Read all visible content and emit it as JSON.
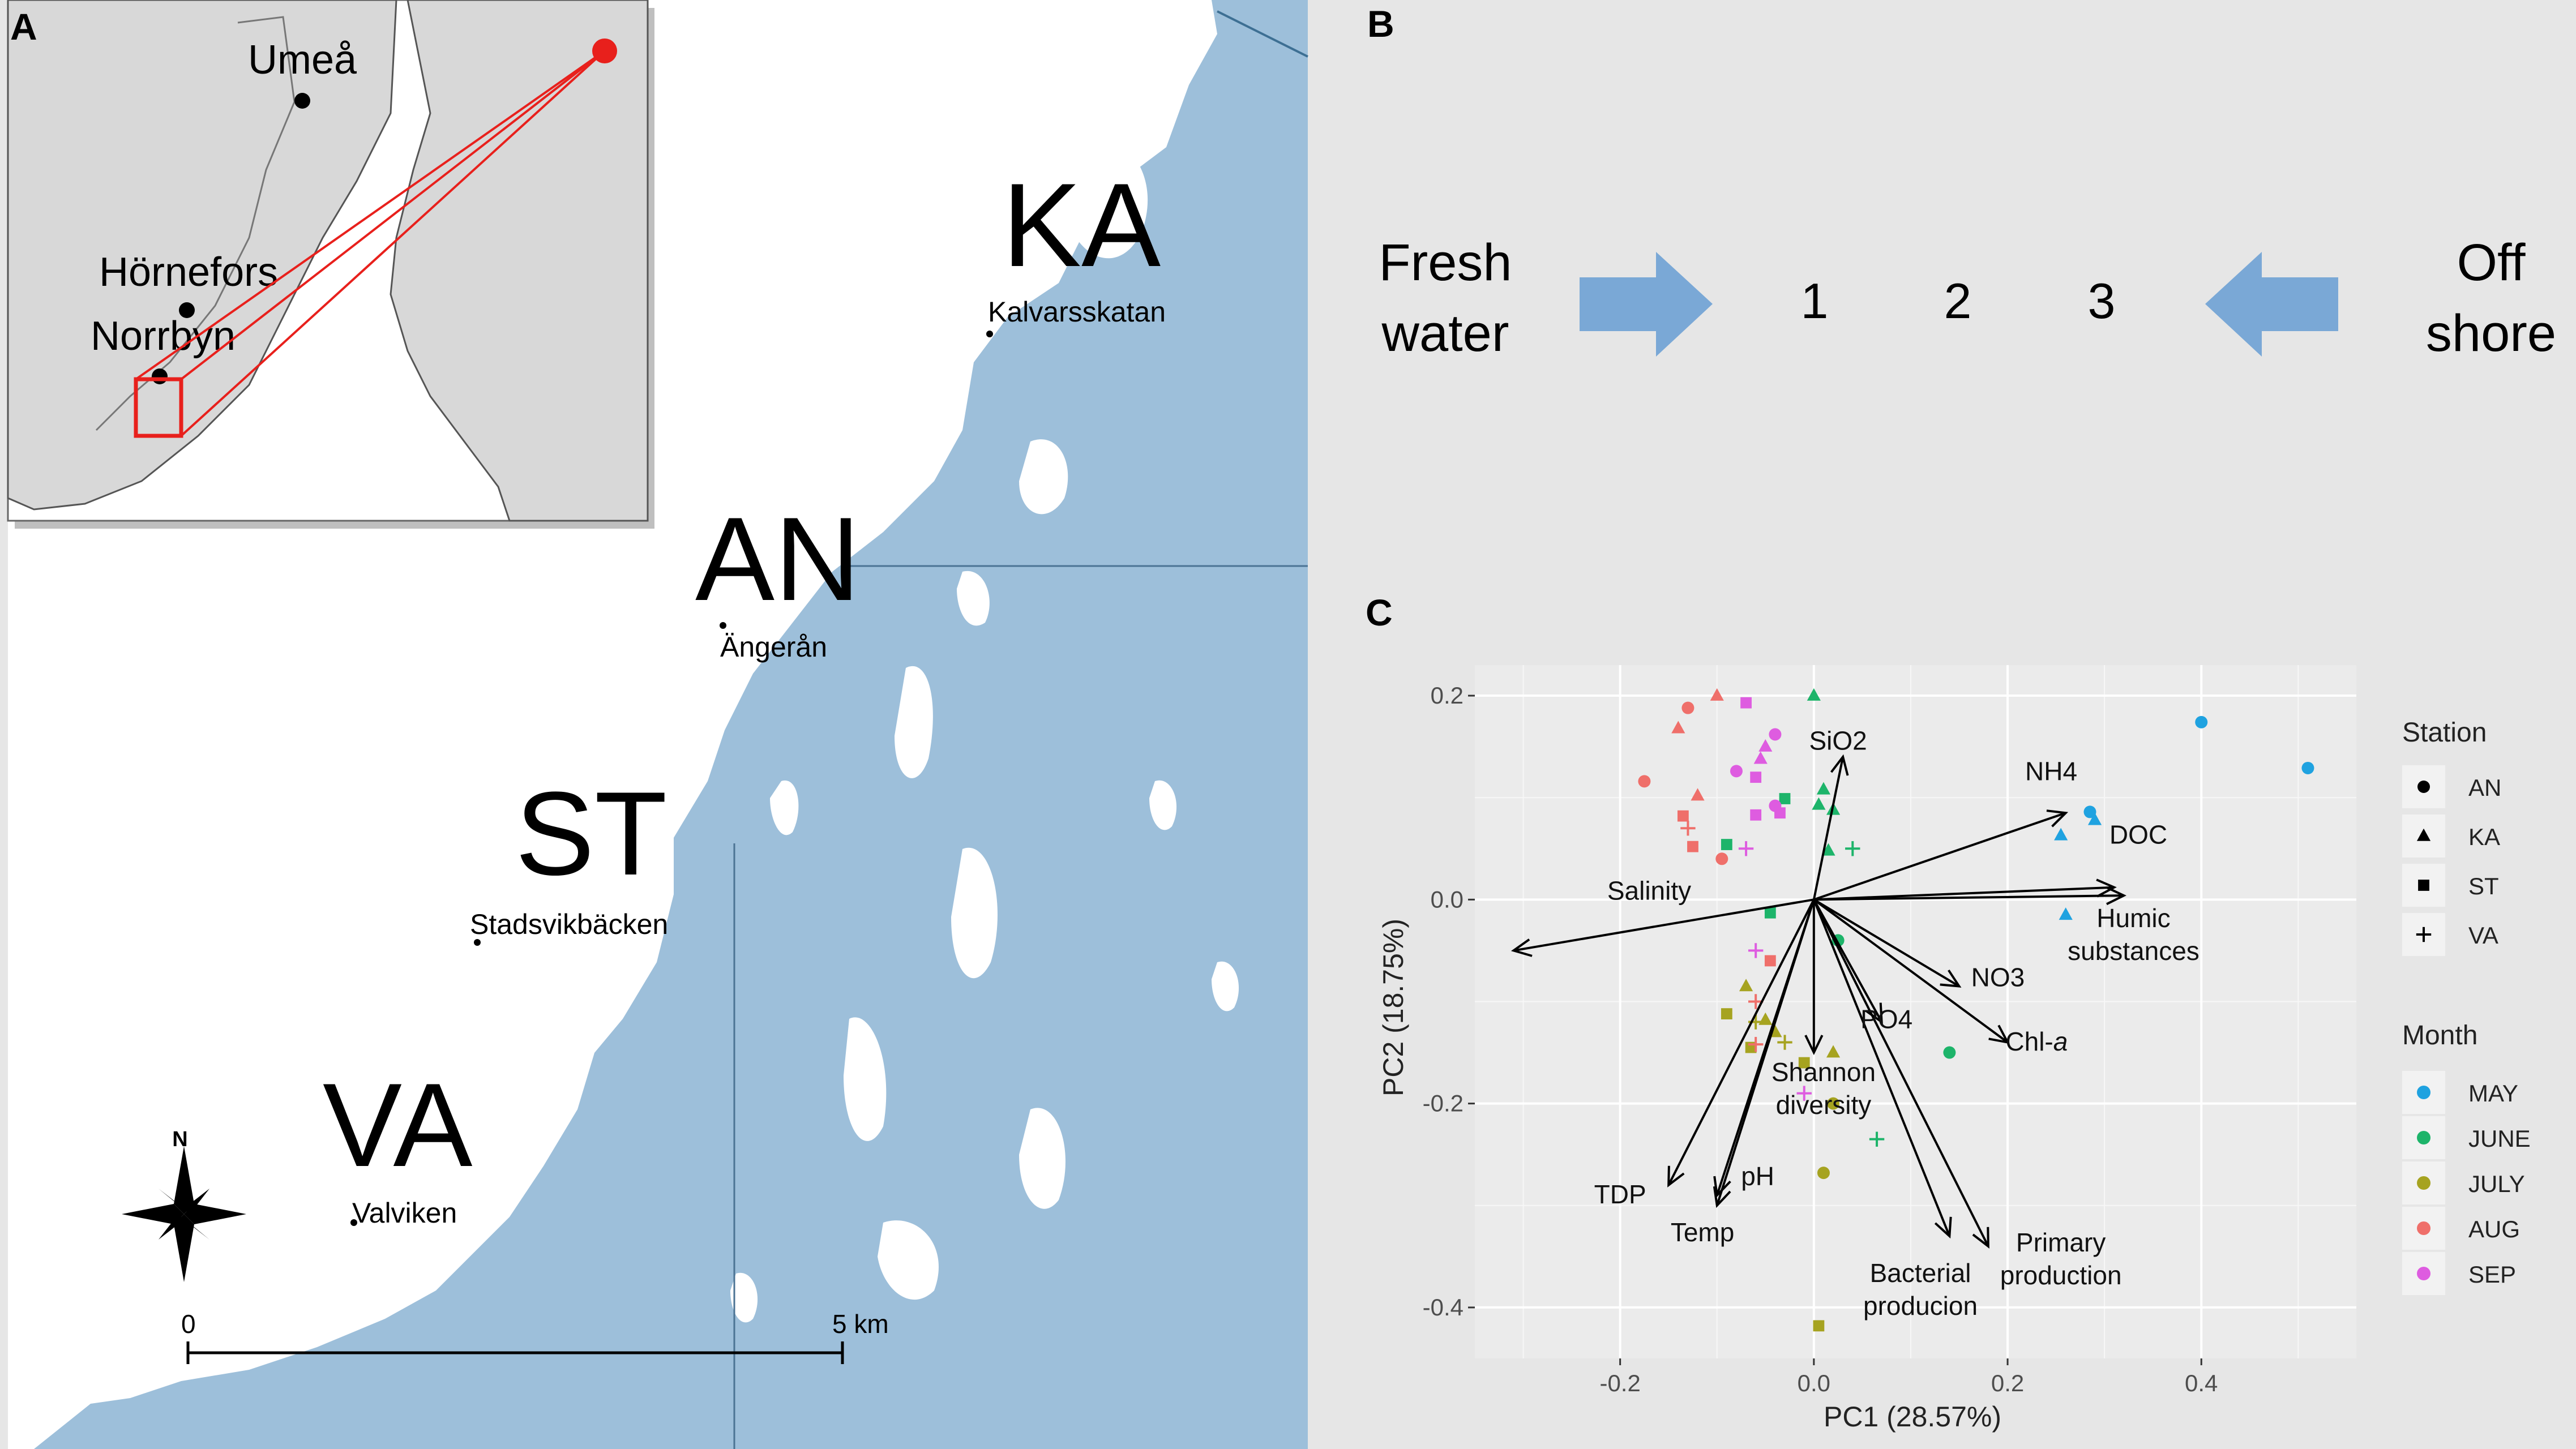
{
  "panels": {
    "a": "A",
    "b": "B",
    "c": "C"
  },
  "map": {
    "inset_towns": {
      "umea": "Umeå",
      "hornefors": "Hörnefors",
      "norrbyn": "Norrbyn"
    },
    "stations": [
      {
        "code": "KA",
        "name": "Kalvarsskatan"
      },
      {
        "code": "AN",
        "name": "Ängerån"
      },
      {
        "code": "ST",
        "name": "Stadsvikbäcken"
      },
      {
        "code": "VA",
        "name": "Valviken"
      }
    ],
    "north": "N",
    "scale_start": "0",
    "scale_end": "5 km",
    "colors": {
      "water": "#9dbfda",
      "land": "#ffffff",
      "inset_land": "#eeeeee",
      "marker": "#e8201c"
    }
  },
  "gradient": {
    "left_line1": "Fresh",
    "left_line2": "water",
    "steps": [
      "1",
      "2",
      "3"
    ],
    "right_line1": "Off",
    "right_line2": "shore",
    "arrow_color": "#7aa8d6"
  },
  "chart_data": {
    "type": "scatter",
    "xlabel": "PC1 (28.57%)",
    "ylabel": "PC2 (18.75%)",
    "xlim": [
      -0.35,
      0.56
    ],
    "ylim": [
      -0.45,
      0.23
    ],
    "xticks": [
      {
        "v": -0.2,
        "t": "-0.2"
      },
      {
        "v": 0.0,
        "t": "0.0"
      },
      {
        "v": 0.2,
        "t": "0.2"
      },
      {
        "v": 0.4,
        "t": "0.4"
      }
    ],
    "yticks": [
      {
        "v": 0.2,
        "t": "0.2"
      },
      {
        "v": 0.0,
        "t": "0.0"
      },
      {
        "v": -0.2,
        "t": "-0.2"
      },
      {
        "v": -0.4,
        "t": "-0.4"
      }
    ],
    "grid": true,
    "legend_station": {
      "title": "Station",
      "items": [
        {
          "label": "AN",
          "shape": "circle"
        },
        {
          "label": "KA",
          "shape": "triangle"
        },
        {
          "label": "ST",
          "shape": "square"
        },
        {
          "label": "VA",
          "shape": "plus"
        }
      ]
    },
    "legend_month": {
      "title": "Month",
      "items": [
        {
          "label": "MAY",
          "color": "#1fa2e0"
        },
        {
          "label": "JUNE",
          "color": "#1db46a"
        },
        {
          "label": "JULY",
          "color": "#a6a320"
        },
        {
          "label": "AUG",
          "color": "#ef6f6a"
        },
        {
          "label": "SEP",
          "color": "#de5ce0"
        }
      ]
    },
    "vectors": [
      {
        "label": "SiO2",
        "x": 0.03,
        "y": 0.14,
        "lx": 0.025,
        "ly": 0.147
      },
      {
        "label": "NH4",
        "x": 0.26,
        "y": 0.085,
        "lx": 0.245,
        "ly": 0.117
      },
      {
        "label": "DOC",
        "x": 0.31,
        "y": 0.012,
        "lx": 0.335,
        "ly": 0.055
      },
      {
        "label": "Humic substances",
        "x": 0.32,
        "y": 0.004,
        "lx": 0.33,
        "ly": -0.027
      },
      {
        "label": "NO3",
        "x": 0.15,
        "y": -0.085,
        "lx": 0.19,
        "ly": -0.085
      },
      {
        "label": "PO4",
        "x": 0.07,
        "y": -0.12,
        "lx": 0.075,
        "ly": -0.126
      },
      {
        "label": "Chl-a",
        "x": 0.2,
        "y": -0.14,
        "lx": 0.23,
        "ly": -0.148
      },
      {
        "label": "Shannon diversity",
        "x": 0.0,
        "y": -0.15,
        "lx": 0.01,
        "ly": -0.178
      },
      {
        "label": "Salinity",
        "x": -0.31,
        "y": -0.05,
        "lx": -0.17,
        "ly": 0.0
      },
      {
        "label": "TDP",
        "x": -0.15,
        "y": -0.28,
        "lx": -0.2,
        "ly": -0.298
      },
      {
        "label": "pH",
        "x": -0.1,
        "y": -0.29,
        "lx": -0.058,
        "ly": -0.28
      },
      {
        "label": "Temp",
        "x": -0.1,
        "y": -0.3,
        "lx": -0.115,
        "ly": -0.335
      },
      {
        "label": "Bacterial producion",
        "x": 0.14,
        "y": -0.33,
        "lx": 0.11,
        "ly": -0.375
      },
      {
        "label": "Primary production",
        "x": 0.18,
        "y": -0.34,
        "lx": 0.255,
        "ly": -0.345
      }
    ],
    "points": [
      {
        "x": 0.4,
        "y": 0.174,
        "shape": "circle",
        "month": "MAY"
      },
      {
        "x": 0.51,
        "y": 0.129,
        "shape": "circle",
        "month": "MAY"
      },
      {
        "x": 0.285,
        "y": 0.086,
        "shape": "circle",
        "month": "MAY"
      },
      {
        "x": 0.29,
        "y": 0.078,
        "shape": "triangle",
        "month": "MAY"
      },
      {
        "x": 0.255,
        "y": 0.063,
        "shape": "triangle",
        "month": "MAY"
      },
      {
        "x": 0.26,
        "y": -0.015,
        "shape": "triangle",
        "month": "MAY"
      },
      {
        "x": 0.0,
        "y": 0.2,
        "shape": "triangle",
        "month": "JUNE"
      },
      {
        "x": 0.01,
        "y": 0.108,
        "shape": "triangle",
        "month": "JUNE"
      },
      {
        "x": 0.005,
        "y": 0.093,
        "shape": "triangle",
        "month": "JUNE"
      },
      {
        "x": 0.02,
        "y": 0.088,
        "shape": "triangle",
        "month": "JUNE"
      },
      {
        "x": -0.03,
        "y": 0.099,
        "shape": "square",
        "month": "JUNE"
      },
      {
        "x": -0.09,
        "y": 0.054,
        "shape": "square",
        "month": "JUNE"
      },
      {
        "x": -0.045,
        "y": -0.013,
        "shape": "square",
        "month": "JUNE"
      },
      {
        "x": 0.015,
        "y": 0.048,
        "shape": "triangle",
        "month": "JUNE"
      },
      {
        "x": 0.04,
        "y": 0.05,
        "shape": "plus",
        "month": "JUNE"
      },
      {
        "x": 0.025,
        "y": -0.04,
        "shape": "circle",
        "month": "JUNE"
      },
      {
        "x": 0.14,
        "y": -0.15,
        "shape": "circle",
        "month": "JUNE"
      },
      {
        "x": 0.065,
        "y": -0.235,
        "shape": "plus",
        "month": "JUNE"
      },
      {
        "x": -0.07,
        "y": -0.085,
        "shape": "triangle",
        "month": "JULY"
      },
      {
        "x": -0.09,
        "y": -0.112,
        "shape": "square",
        "month": "JULY"
      },
      {
        "x": -0.05,
        "y": -0.118,
        "shape": "triangle",
        "month": "JULY"
      },
      {
        "x": -0.06,
        "y": -0.12,
        "shape": "plus",
        "month": "JULY"
      },
      {
        "x": -0.04,
        "y": -0.13,
        "shape": "triangle",
        "month": "JULY"
      },
      {
        "x": -0.065,
        "y": -0.145,
        "shape": "square",
        "month": "JULY"
      },
      {
        "x": -0.03,
        "y": -0.14,
        "shape": "plus",
        "month": "JULY"
      },
      {
        "x": 0.02,
        "y": -0.15,
        "shape": "triangle",
        "month": "JULY"
      },
      {
        "x": -0.01,
        "y": -0.16,
        "shape": "square",
        "month": "JULY"
      },
      {
        "x": 0.02,
        "y": -0.2,
        "shape": "circle",
        "month": "JULY"
      },
      {
        "x": 0.01,
        "y": -0.268,
        "shape": "circle",
        "month": "JULY"
      },
      {
        "x": 0.005,
        "y": -0.418,
        "shape": "square",
        "month": "JULY"
      },
      {
        "x": -0.13,
        "y": 0.188,
        "shape": "circle",
        "month": "AUG"
      },
      {
        "x": -0.1,
        "y": 0.2,
        "shape": "triangle",
        "month": "AUG"
      },
      {
        "x": -0.14,
        "y": 0.168,
        "shape": "triangle",
        "month": "AUG"
      },
      {
        "x": -0.175,
        "y": 0.116,
        "shape": "circle",
        "month": "AUG"
      },
      {
        "x": -0.12,
        "y": 0.102,
        "shape": "triangle",
        "month": "AUG"
      },
      {
        "x": -0.135,
        "y": 0.082,
        "shape": "square",
        "month": "AUG"
      },
      {
        "x": -0.13,
        "y": 0.07,
        "shape": "plus",
        "month": "AUG"
      },
      {
        "x": -0.125,
        "y": 0.052,
        "shape": "square",
        "month": "AUG"
      },
      {
        "x": -0.095,
        "y": 0.04,
        "shape": "circle",
        "month": "AUG"
      },
      {
        "x": -0.045,
        "y": -0.06,
        "shape": "square",
        "month": "AUG"
      },
      {
        "x": -0.06,
        "y": -0.1,
        "shape": "plus",
        "month": "AUG"
      },
      {
        "x": -0.06,
        "y": -0.142,
        "shape": "plus",
        "month": "AUG"
      },
      {
        "x": -0.07,
        "y": 0.193,
        "shape": "square",
        "month": "SEP"
      },
      {
        "x": -0.04,
        "y": 0.162,
        "shape": "circle",
        "month": "SEP"
      },
      {
        "x": -0.05,
        "y": 0.15,
        "shape": "triangle",
        "month": "SEP"
      },
      {
        "x": -0.055,
        "y": 0.138,
        "shape": "triangle",
        "month": "SEP"
      },
      {
        "x": -0.06,
        "y": 0.12,
        "shape": "square",
        "month": "SEP"
      },
      {
        "x": -0.08,
        "y": 0.126,
        "shape": "circle",
        "month": "SEP"
      },
      {
        "x": -0.04,
        "y": 0.092,
        "shape": "circle",
        "month": "SEP"
      },
      {
        "x": -0.035,
        "y": 0.085,
        "shape": "square",
        "month": "SEP"
      },
      {
        "x": -0.06,
        "y": 0.083,
        "shape": "square",
        "month": "SEP"
      },
      {
        "x": -0.07,
        "y": 0.05,
        "shape": "plus",
        "month": "SEP"
      },
      {
        "x": -0.06,
        "y": -0.05,
        "shape": "plus",
        "month": "SEP"
      },
      {
        "x": -0.01,
        "y": -0.19,
        "shape": "plus",
        "month": "SEP"
      }
    ]
  }
}
